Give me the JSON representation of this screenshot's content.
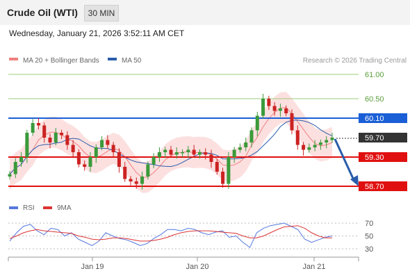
{
  "header": {
    "title": "Crude Oil (WTI)",
    "timeframe": "30 MIN",
    "datetime": "Wednesday, January 21, 2026 3:52:11 AM CET"
  },
  "legend": {
    "ma20_label": "MA 20 + Bollinger Bands",
    "ma50_label": "MA 50",
    "credit": "Research © 2026 Trading Central",
    "ma20_color": "#f08080",
    "ma50_color": "#2a5caa"
  },
  "chart_data": {
    "type": "candlestick",
    "y_range": [
      58.55,
      61.1
    ],
    "levels": [
      {
        "value": 61.0,
        "label": "61.00",
        "kind": "target",
        "color": "#9acd7a"
      },
      {
        "value": 60.5,
        "label": "60.50",
        "kind": "target",
        "color": "#9acd7a"
      },
      {
        "value": 60.1,
        "label": "60.10",
        "kind": "pivot",
        "color": "#1a5fd6"
      },
      {
        "value": 59.7,
        "label": "59.70",
        "kind": "last-price",
        "color": "#333333"
      },
      {
        "value": 59.3,
        "label": "59.30",
        "kind": "support",
        "color": "#e01010"
      },
      {
        "value": 58.7,
        "label": "58.70",
        "kind": "support",
        "color": "#e01010"
      }
    ],
    "x_ticks": [
      "Jan 19",
      "Jan 20",
      "Jan 21"
    ],
    "closes": [
      58.95,
      59.2,
      59.3,
      59.8,
      60.0,
      59.95,
      59.7,
      59.6,
      59.8,
      59.75,
      59.55,
      59.4,
      59.15,
      59.1,
      59.3,
      59.5,
      59.65,
      59.55,
      59.4,
      59.1,
      58.85,
      58.8,
      58.75,
      58.9,
      59.15,
      59.3,
      59.4,
      59.45,
      59.35,
      59.4,
      59.4,
      59.45,
      59.35,
      59.4,
      59.35,
      59.2,
      59.0,
      58.75,
      59.3,
      59.45,
      59.5,
      59.6,
      59.85,
      60.15,
      60.5,
      60.35,
      60.25,
      60.3,
      60.2,
      59.85,
      59.55,
      59.45,
      59.5,
      59.55,
      59.6,
      59.65,
      59.7
    ],
    "rsi": {
      "name": "RSI",
      "ma_name": "9MA",
      "ticks": [
        70,
        50,
        30
      ],
      "values": [
        42,
        55,
        65,
        68,
        58,
        52,
        62,
        60,
        50,
        55,
        45,
        40,
        35,
        42,
        55,
        50,
        46,
        44,
        40,
        35,
        38,
        46,
        52,
        60,
        60,
        58,
        62,
        60,
        55,
        52,
        56,
        58,
        48,
        50,
        40,
        32,
        55,
        62,
        66,
        68,
        70,
        65,
        60,
        45,
        40,
        44,
        48,
        50
      ],
      "ma_values": [
        46,
        50,
        55,
        58,
        60,
        58,
        57,
        56,
        55,
        54,
        50,
        48,
        45,
        44,
        45,
        47,
        47,
        46,
        44,
        42,
        42,
        43,
        45,
        48,
        52,
        55,
        57,
        58,
        58,
        58,
        57,
        56,
        55,
        54,
        50,
        47,
        47,
        50,
        55,
        60,
        64,
        65,
        66,
        62,
        55,
        50,
        47,
        47
      ],
      "color": "#5577dd",
      "ma_color": "#dd3333"
    }
  }
}
